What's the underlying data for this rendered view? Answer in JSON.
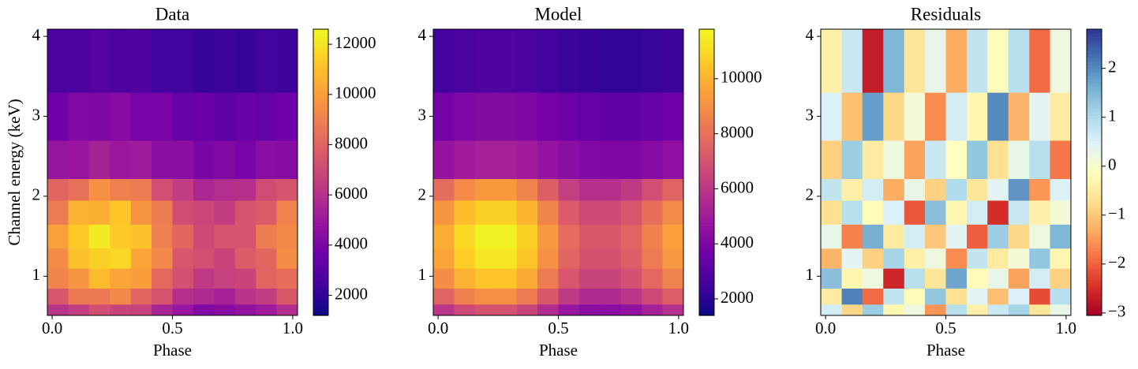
{
  "chart_data": [
    {
      "type": "heatmap",
      "title": "Data",
      "x_label": "Phase",
      "y_label": "Channel energy (keV)",
      "colormap": "plasma",
      "x_edges": [
        -0.02,
        0.067,
        0.153,
        0.24,
        0.327,
        0.413,
        0.5,
        0.587,
        0.673,
        0.76,
        0.847,
        0.933,
        1.02
      ],
      "y_edges": [
        0.51,
        0.65,
        0.85,
        1.1,
        1.35,
        1.65,
        1.95,
        2.22,
        2.7,
        3.3,
        4.09
      ],
      "values": [
        [
          6100,
          6500,
          7200,
          6800,
          6700,
          5500,
          4900,
          4200,
          4400,
          4700,
          5100,
          5900
        ],
        [
          7500,
          8800,
          8800,
          9300,
          8100,
          7400,
          6000,
          5700,
          5400,
          6100,
          6500,
          7600
        ],
        [
          9200,
          9700,
          10900,
          10200,
          10000,
          8200,
          7300,
          6300,
          6700,
          6800,
          8000,
          8400
        ],
        [
          9400,
          11100,
          11500,
          11700,
          10200,
          9300,
          7500,
          7200,
          6800,
          7700,
          8100,
          9500
        ],
        [
          10100,
          11300,
          12200,
          11300,
          11100,
          9000,
          8100,
          7000,
          7400,
          7400,
          8900,
          9300
        ],
        [
          8900,
          10600,
          10500,
          11200,
          9700,
          8900,
          7100,
          6900,
          6500,
          7400,
          7700,
          9100
        ],
        [
          8100,
          8500,
          9600,
          9000,
          8900,
          7200,
          6500,
          5600,
          5900,
          6000,
          7100,
          7400
        ],
        [
          4800,
          4900,
          5400,
          5000,
          5100,
          4500,
          4500,
          4000,
          4200,
          3900,
          4400,
          4300
        ],
        [
          3700,
          4200,
          4100,
          4300,
          3900,
          3900,
          3400,
          3500,
          3200,
          3400,
          3300,
          3700
        ],
        [
          2600,
          2600,
          2900,
          2700,
          2800,
          2400,
          2400,
          2100,
          2300,
          2100,
          2400,
          2300
        ]
      ],
      "clim": [
        1200,
        12600
      ],
      "cticks": [
        2000,
        4000,
        6000,
        8000,
        10000,
        12000
      ],
      "xlim": [
        -0.02,
        1.02
      ],
      "ylim": [
        0.51,
        4.09
      ],
      "xticks": [
        {
          "value": 0,
          "label": "0.0"
        },
        0.5,
        {
          "value": 1,
          "label": "1.0"
        }
      ],
      "yticks": [
        1,
        2,
        3,
        4
      ]
    },
    {
      "type": "heatmap",
      "title": "Model",
      "x_label": "Phase",
      "colormap": "plasma",
      "x_edges": [
        -0.02,
        0.067,
        0.153,
        0.24,
        0.327,
        0.413,
        0.5,
        0.587,
        0.673,
        0.76,
        0.847,
        0.933,
        1.02
      ],
      "y_edges": [
        0.51,
        0.65,
        0.85,
        1.1,
        1.35,
        1.65,
        1.95,
        2.22,
        2.7,
        3.3,
        4.09
      ],
      "values": [
        [
          5950,
          6650,
          7000,
          7000,
          6510,
          5600,
          4760,
          4340,
          4340,
          4620,
          5180,
          5740
        ],
        [
          7650,
          8550,
          9000,
          9000,
          8370,
          7200,
          6120,
          5580,
          5580,
          5940,
          6660,
          7380
        ],
        [
          8930,
          9980,
          10500,
          10500,
          9770,
          8400,
          7140,
          6510,
          6510,
          6930,
          7770,
          8610
        ],
        [
          9610,
          10740,
          11300,
          11300,
          10510,
          9040,
          7680,
          7010,
          7010,
          7460,
          8360,
          9270
        ],
        [
          9860,
          11020,
          11600,
          11600,
          10790,
          9280,
          7890,
          7190,
          7190,
          7660,
          8580,
          9510
        ],
        [
          9180,
          10260,
          10800,
          10800,
          10040,
          8640,
          7340,
          6700,
          6700,
          7130,
          7990,
          8860
        ],
        [
          7910,
          8840,
          9300,
          9300,
          8650,
          7440,
          6320,
          5770,
          5770,
          6140,
          6880,
          7630
        ],
        [
          4680,
          4990,
          5200,
          5200,
          4990,
          4680,
          4370,
          4160,
          4060,
          4060,
          4260,
          4470
        ],
        [
          3780,
          4030,
          4200,
          4200,
          4030,
          3780,
          3530,
          3360,
          3280,
          3280,
          3440,
          3610
        ],
        [
          2520,
          2690,
          2800,
          2800,
          2690,
          2520,
          2350,
          2240,
          2180,
          2180,
          2300,
          2410
        ]
      ],
      "clim": [
        1400,
        11800
      ],
      "cticks": [
        2000,
        4000,
        6000,
        8000,
        10000
      ],
      "xlim": [
        -0.02,
        1.02
      ],
      "ylim": [
        0.51,
        4.09
      ],
      "xticks": [
        {
          "value": 0,
          "label": "0.0"
        },
        0.5,
        {
          "value": 1,
          "label": "1.0"
        }
      ],
      "yticks": [
        1,
        2,
        3,
        4
      ]
    },
    {
      "type": "heatmap",
      "title": "Residuals",
      "x_label": "Phase",
      "colormap": "RdYlBu",
      "x_edges": [
        -0.02,
        0.067,
        0.153,
        0.24,
        0.327,
        0.413,
        0.5,
        0.587,
        0.673,
        0.76,
        0.847,
        0.933,
        1.02
      ],
      "y_edges": [
        0.51,
        0.65,
        0.85,
        1.1,
        1.35,
        1.65,
        1.95,
        2.22,
        2.7,
        3.3,
        4.09
      ],
      "values": [
        [
          0.6,
          -0.8,
          1.2,
          -0.3,
          0.2,
          -1.5,
          0.9,
          -0.4,
          0.7,
          1.1,
          -0.6,
          0.3
        ],
        [
          -0.5,
          2.1,
          -1.9,
          0.8,
          -0.2,
          1.3,
          -0.7,
          0.4,
          -1.1,
          0.5,
          -2.2,
          0.9
        ],
        [
          1.4,
          -0.3,
          0.2,
          -2.6,
          0.9,
          -0.6,
          1.7,
          -0.2,
          0.3,
          -1.4,
          0.6,
          -0.9
        ],
        [
          -1.2,
          0.4,
          -0.9,
          1.1,
          -0.4,
          0.2,
          -1.6,
          0.8,
          -0.5,
          0.1,
          1.3,
          -0.3
        ],
        [
          0.3,
          -1.7,
          1.6,
          -0.5,
          0.6,
          -1.0,
          0.4,
          -2.0,
          1.2,
          -0.8,
          0.2,
          1.5
        ],
        [
          -0.7,
          0.9,
          -0.2,
          0.5,
          -2.1,
          1.4,
          -0.3,
          0.6,
          -2.5,
          0.7,
          -0.4,
          0.1
        ],
        [
          0.8,
          -0.4,
          0.6,
          -1.3,
          0.3,
          -0.9,
          1.0,
          -0.6,
          0.4,
          1.9,
          -1.5,
          0.5
        ],
        [
          -0.9,
          1.2,
          -0.5,
          0.2,
          -1.4,
          0.7,
          -0.1,
          1.3,
          -0.7,
          0.3,
          0.9,
          -1.8
        ],
        [
          0.5,
          -1.1,
          1.8,
          -0.8,
          0.1,
          -1.6,
          0.6,
          -0.3,
          2.0,
          -1.2,
          0.4,
          -0.5
        ],
        [
          -0.4,
          0.7,
          -2.7,
          1.5,
          -0.6,
          0.3,
          -1.3,
          0.8,
          -0.2,
          0.9,
          -1.9,
          0.2
        ]
      ],
      "clim": [
        -3.05,
        2.8
      ],
      "cticks": [
        {
          "value": -3,
          "label": "−3"
        },
        {
          "value": -2,
          "label": "−2"
        },
        {
          "value": -1,
          "label": "−1"
        },
        0,
        1,
        2
      ],
      "xlim": [
        -0.02,
        1.02
      ],
      "ylim": [
        0.51,
        4.09
      ],
      "xticks": [
        {
          "value": 0,
          "label": "0.0"
        },
        0.5,
        {
          "value": 1,
          "label": "1.0"
        }
      ],
      "yticks": [
        1,
        2,
        3,
        4
      ]
    }
  ]
}
